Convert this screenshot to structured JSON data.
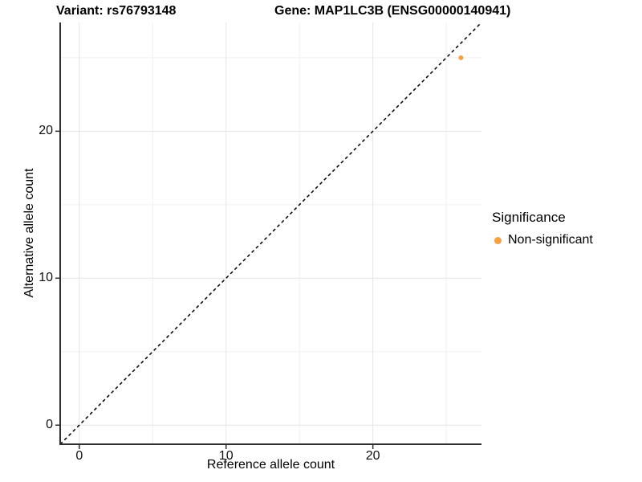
{
  "title": {
    "variant": "Variant: rs76793148",
    "gene": "Gene: MAP1LC3B (ENSG00000140941)"
  },
  "axes": {
    "x": {
      "label": "Reference allele count",
      "ticks": [
        "0",
        "10",
        "20"
      ]
    },
    "y": {
      "label": "Alternative allele count",
      "ticks": [
        "0",
        "10",
        "20"
      ]
    }
  },
  "legend": {
    "title": "Significance",
    "items": [
      {
        "label": "Non-significant",
        "color": "#F9A03F"
      }
    ]
  },
  "colors": {
    "point_orange": "#F9A03F",
    "grid_major": "#E4E4E4",
    "grid_minor": "#F0F0F0",
    "axis_line": "#2F2F2F",
    "reference_line": "#000000"
  },
  "chart_data": {
    "type": "scatter",
    "title_left": "Variant: rs76793148",
    "title_right": "Gene: MAP1LC3B (ENSG00000140941)",
    "xlabel": "Reference allele count",
    "ylabel": "Alternative allele count",
    "xlim": [
      -1.3,
      27.4
    ],
    "ylim": [
      -1.3,
      27.4
    ],
    "x_ticks": [
      0,
      10,
      20
    ],
    "y_ticks": [
      0,
      10,
      20
    ],
    "x_minor_ticks": [
      5,
      15,
      25
    ],
    "y_minor_ticks": [
      5,
      15,
      25
    ],
    "grid": "on",
    "legend_position": "right",
    "series": [
      {
        "name": "Non-significant",
        "color": "#F9A03F",
        "points": [
          {
            "x": 26,
            "y": 25
          }
        ]
      }
    ],
    "reference_line": {
      "style": "dashed",
      "slope": 1,
      "intercept": 0,
      "color": "#000000"
    }
  }
}
